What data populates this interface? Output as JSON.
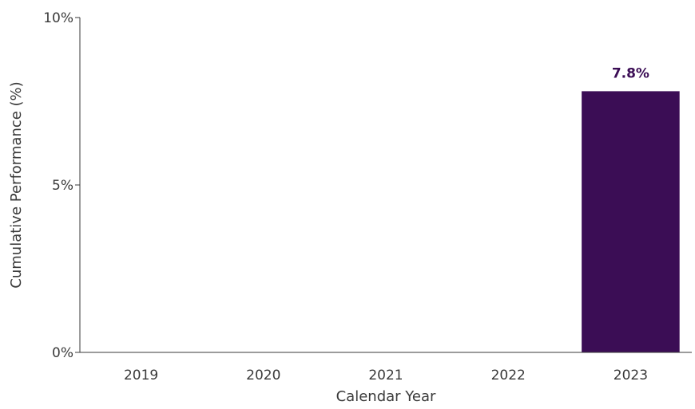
{
  "chart_data": {
    "type": "bar",
    "categories": [
      "2019",
      "2020",
      "2021",
      "2022",
      "2023"
    ],
    "values": [
      null,
      null,
      null,
      null,
      7.8
    ],
    "data_labels": [
      "",
      "",
      "",
      "",
      "7.8%"
    ],
    "xlabel": "Calendar Year",
    "ylabel": "Cumulative Performance (%)",
    "ylim": [
      0,
      10
    ],
    "yticks": [
      0,
      5,
      10
    ],
    "ytick_labels": [
      "0%",
      "5%",
      "10%"
    ],
    "grid": false,
    "bar_color": "#3b0d55",
    "label_color": "#3b0d55"
  }
}
